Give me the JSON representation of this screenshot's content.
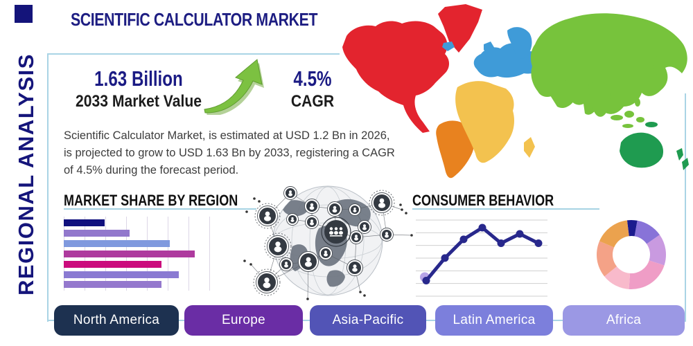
{
  "page": {
    "title": "SCIENTIFIC CALCULATOR MARKET",
    "side_label": "REGIONAL ANALYSIS"
  },
  "stats": {
    "market_value": "1.63 Billion",
    "market_value_caption": "2033 Market Value",
    "cagr_value": "4.5%",
    "cagr_caption": "CAGR",
    "growth_arrow_icon": "curved-up-right-green-arrow"
  },
  "description": "Scientific Calculator Market, is estimated at USD 1.2 Bn in 2026,\nis projected to grow to USD 1.63 Bn by 2033, registering a CAGR\nof 4.5% during the forecast period.",
  "sections": {
    "market_share_title": "MARKET SHARE BY REGION",
    "consumer_behavior_title": "CONSUMER BEHAVIOR"
  },
  "region_buttons": [
    {
      "label": "North America",
      "color": "#1d3150"
    },
    {
      "label": "Europe",
      "color": "#6a2da5"
    },
    {
      "label": "Asia-Pacific",
      "color": "#5254b6"
    },
    {
      "label": "Latin America",
      "color": "#7c7fdc"
    },
    {
      "label": "Africa",
      "color": "#9b98e4"
    }
  ],
  "map_regions": {
    "north_america": "#e3242e",
    "greenland": "#e3242e",
    "south_america": "#e8821f",
    "europe": "#3f9bd8",
    "africa": "#f3c24f",
    "asia": "#77c33c",
    "oceania": "#1f9b50"
  },
  "colors": {
    "accent_navy": "#1b1b80",
    "frame_blue": "#a9d4e5",
    "arrow_green": "#7cc141"
  },
  "chart_data": [
    {
      "type": "bar",
      "title": "MARKET SHARE BY REGION",
      "orientation": "horizontal",
      "categories": [
        "",
        "",
        "",
        "",
        "",
        "",
        ""
      ],
      "values": [
        28,
        45,
        73,
        90,
        67,
        79,
        67
      ],
      "value_scale": "relative share, no axis labels shown (0-100)",
      "bar_colors": [
        "#10107e",
        "#9278cc",
        "#7f99de",
        "#ae3a9e",
        "#cb0b7d",
        "#8a7ad2",
        "#9478cd"
      ],
      "grid": "vertical lines, unlabeled"
    },
    {
      "type": "line",
      "title": "CONSUMER BEHAVIOR",
      "x": [
        1,
        2,
        3,
        4,
        5,
        6,
        7
      ],
      "values": [
        20,
        49,
        73,
        88,
        68,
        80,
        68
      ],
      "value_scale": "relative level, no axis labels shown (0-100)",
      "line_color": "#28288c",
      "marker_color": "#28288c",
      "start_marker_color": "#b7a4e6",
      "grid": "horizontal lines, unlabeled"
    },
    {
      "type": "pie",
      "title": "regional share donut (unlabeled)",
      "donut": true,
      "start_deg": 353,
      "sweeps_deg": [
        17,
        45,
        53,
        76,
        47,
        62,
        60
      ],
      "slice_colors": [
        "#1b1b8e",
        "#8873d8",
        "#c99ae0",
        "#ef9dc6",
        "#f8bacb",
        "#f4a287",
        "#eba24e"
      ]
    }
  ]
}
